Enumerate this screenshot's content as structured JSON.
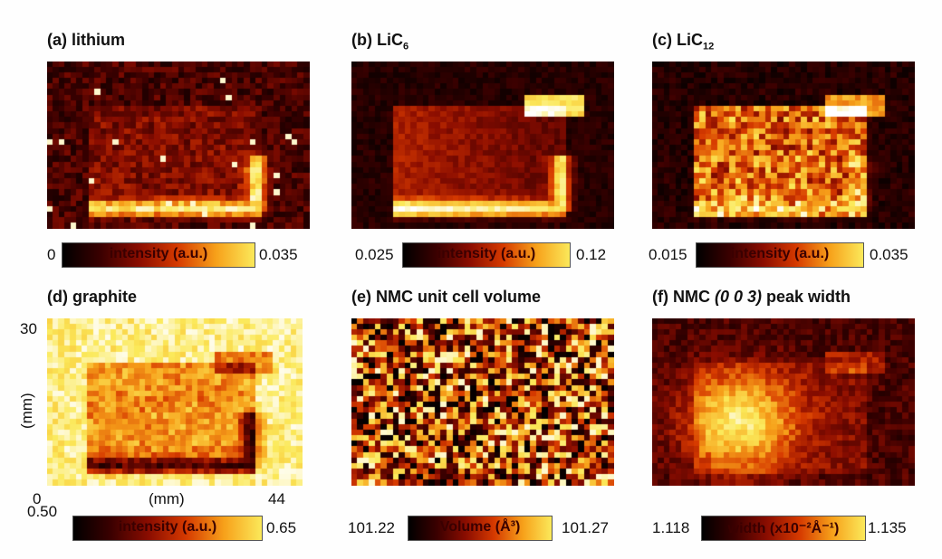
{
  "colormap": [
    "#000000",
    "#3b0000",
    "#8b0d00",
    "#d63a00",
    "#f7a11a",
    "#fbe95a",
    "#ffffff"
  ],
  "panels": [
    {
      "id": "a",
      "title_prefix": "(a) lithium",
      "title_sub": "",
      "title_suffix": "",
      "cb_min": "0",
      "cb_max": "0.035",
      "cb_label": "intensity (a.u.)",
      "pattern": "sparse-bottom"
    },
    {
      "id": "b",
      "title_prefix": "(b) LiC",
      "title_sub": "6",
      "title_suffix": "",
      "cb_min": "0.025",
      "cb_max": "0.12",
      "cb_label": "intensity (a.u.)",
      "pattern": "cup"
    },
    {
      "id": "c",
      "title_prefix": "(c) LiC",
      "title_sub": "12",
      "title_suffix": "",
      "cb_min": "0.015",
      "cb_max": "0.035",
      "cb_label": "intensity (a.u.)",
      "pattern": "cup-noisy"
    },
    {
      "id": "d",
      "title_prefix": "(d) graphite",
      "title_sub": "",
      "title_suffix": "",
      "cb_min": "0.50",
      "cb_max": "0.65",
      "cb_label": "intensity (a.u.)",
      "pattern": "graphite"
    },
    {
      "id": "e",
      "title_prefix": "(e) NMC unit cell volume",
      "title_sub": "",
      "title_suffix": "",
      "cb_min": "101.22",
      "cb_max": "101.27",
      "cb_label": "Volume (Å³)",
      "pattern": "random"
    },
    {
      "id": "f",
      "title_prefix": "(f) NMC ",
      "title_sub": "",
      "title_italic": "(0 0 3)",
      "title_suffix": " peak width",
      "cb_min": "1.118",
      "cb_max": "1.135",
      "cb_label": "width (x10⁻²Å⁻¹)",
      "pattern": "blob"
    }
  ],
  "axes": {
    "y_label": "(mm)",
    "y_max": "30",
    "x_min": "0",
    "x_label": "(mm)",
    "x_max": "44"
  },
  "chart_data": [
    {
      "type": "heatmap",
      "title": "(a) lithium",
      "colorbar_range": [
        0,
        0.035
      ],
      "colorbar_label": "intensity (a.u.)"
    },
    {
      "type": "heatmap",
      "title": "(b) LiC6",
      "colorbar_range": [
        0.025,
        0.12
      ],
      "colorbar_label": "intensity (a.u.)"
    },
    {
      "type": "heatmap",
      "title": "(c) LiC12",
      "colorbar_range": [
        0.015,
        0.035
      ],
      "colorbar_label": "intensity (a.u.)"
    },
    {
      "type": "heatmap",
      "title": "(d) graphite",
      "colorbar_range": [
        0.5,
        0.65
      ],
      "colorbar_label": "intensity (a.u.)",
      "x_range": [
        0,
        44
      ],
      "y_range": [
        0,
        30
      ],
      "xlabel": "(mm)",
      "ylabel": "(mm)"
    },
    {
      "type": "heatmap",
      "title": "(e) NMC unit cell volume",
      "colorbar_range": [
        101.22,
        101.27
      ],
      "colorbar_label": "Volume (Å³)"
    },
    {
      "type": "heatmap",
      "title": "(f) NMC (0 0 3) peak width",
      "colorbar_range": [
        1.118,
        1.135
      ],
      "colorbar_label": "width (x10⁻²Å⁻¹)"
    }
  ]
}
